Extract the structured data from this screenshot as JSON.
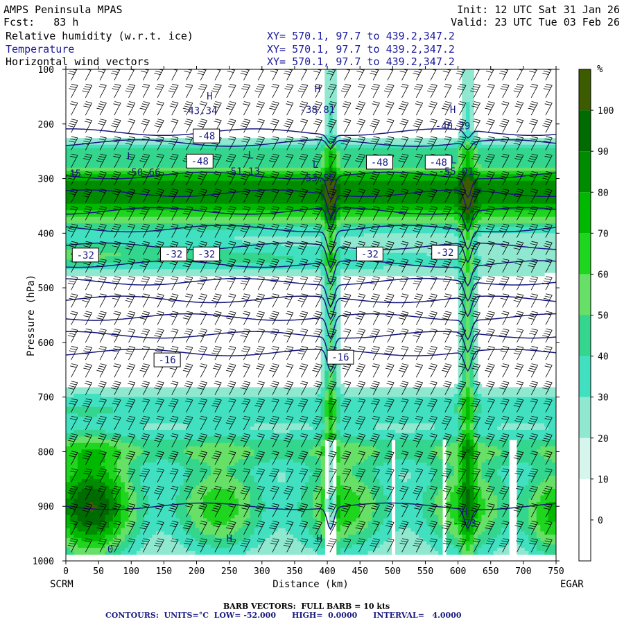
{
  "header": {
    "model": "AMPS Peninsula MPAS",
    "forecast": "Fcst:   83 h",
    "init": "Init: 12 UTC Sat 31 Jan 26",
    "valid": "Valid: 23 UTC Tue 03 Feb 26",
    "fields": [
      {
        "name": "Relative humidity (w.r.t. ice)",
        "xy": "XY= 570.1, 97.7 to 439.2,347.2"
      },
      {
        "name": "Temperature",
        "xy": "XY= 570.1, 97.7 to 439.2,347.2"
      },
      {
        "name": "Horizontal wind vectors",
        "xy": "XY= 570.1, 97.7 to 439.2,347.2"
      }
    ]
  },
  "footer": {
    "barbs": "BARB VECTORS:  FULL BARB = 10 kts",
    "contours": "CONTOURS:  UNITS=°C  LOW= -52.000      HIGH=  0.0000      INTERVAL=   4.0000"
  },
  "colors": {
    "temperature": "#1a1a80",
    "rh": [
      "#ffffff",
      "#ffffff",
      "#d6f5ec",
      "#8fe8cf",
      "#40e0c0",
      "#33d68c",
      "#66e066",
      "#1fd61f",
      "#00b800",
      "#008c00",
      "#006b00",
      "#3d5c00"
    ]
  },
  "chart_data": {
    "type": "heatmap",
    "title": "Relative humidity (w.r.t. ice), Temperature, Horizontal wind vectors",
    "xlabel": "Distance (km)",
    "ylabel": "Pressure (hPa)",
    "x_ticks": [
      0,
      50,
      100,
      150,
      200,
      250,
      300,
      350,
      400,
      450,
      500,
      550,
      600,
      650,
      700,
      750
    ],
    "y_ticks": [
      100,
      200,
      300,
      400,
      500,
      600,
      700,
      800,
      900,
      1000
    ],
    "xlim": [
      0,
      750
    ],
    "ylim": [
      100,
      1000
    ],
    "start_label": "SCRM",
    "end_label": "EGAR",
    "colorbar": {
      "label": "%",
      "ticks": [
        0,
        10,
        20,
        30,
        40,
        50,
        60,
        70,
        80,
        90,
        100
      ],
      "range": [
        -10,
        110
      ]
    },
    "temperature_contours": {
      "units": "°C",
      "low": -52,
      "high": 0,
      "interval": 4
    },
    "contour_labels": [
      {
        "text": "-48",
        "x": 215,
        "p": 222
      },
      {
        "text": "-48",
        "x": 205,
        "p": 268
      },
      {
        "text": "-48",
        "x": 480,
        "p": 270
      },
      {
        "text": "-48",
        "x": 570,
        "p": 270
      },
      {
        "text": "-32",
        "x": 30,
        "p": 440
      },
      {
        "text": "-32",
        "x": 165,
        "p": 438
      },
      {
        "text": "-32",
        "x": 215,
        "p": 438
      },
      {
        "text": "-32",
        "x": 465,
        "p": 438
      },
      {
        "text": "-32",
        "x": 580,
        "p": 435
      },
      {
        "text": "-16",
        "x": 155,
        "p": 632
      },
      {
        "text": "-16",
        "x": 420,
        "p": 627
      }
    ],
    "extrema_labels": [
      {
        "text": "H",
        "x": 220,
        "p": 155
      },
      {
        "text": "-43.34",
        "x": 205,
        "p": 182
      },
      {
        "text": "H",
        "x": 385,
        "p": 142
      },
      {
        "text": "-38.81",
        "x": 385,
        "p": 180
      },
      {
        "text": "H",
        "x": 592,
        "p": 180
      },
      {
        "text": "-40.29",
        "x": 592,
        "p": 210
      },
      {
        "text": "L",
        "x": 98,
        "p": 265
      },
      {
        "text": "-50.66",
        "x": 118,
        "p": 295
      },
      {
        "text": "L",
        "x": 283,
        "p": 263
      },
      {
        "text": "-51.13",
        "x": 270,
        "p": 293
      },
      {
        "text": "L",
        "x": 382,
        "p": 280
      },
      {
        "text": "-53.55",
        "x": 385,
        "p": 305
      },
      {
        "text": "L",
        "x": 593,
        "p": 272
      },
      {
        "text": "-55.01",
        "x": 597,
        "p": 293
      },
      {
        "text": ".15",
        "x": 10,
        "p": 297
      },
      {
        "text": "H",
        "x": 610,
        "p": 916
      },
      {
        "text": "-.73",
        "x": 610,
        "p": 937
      },
      {
        "text": "H",
        "x": 250,
        "p": 965
      },
      {
        "text": "H",
        "x": 388,
        "p": 965
      },
      {
        "text": "0",
        "x": 68,
        "p": 985
      }
    ]
  }
}
